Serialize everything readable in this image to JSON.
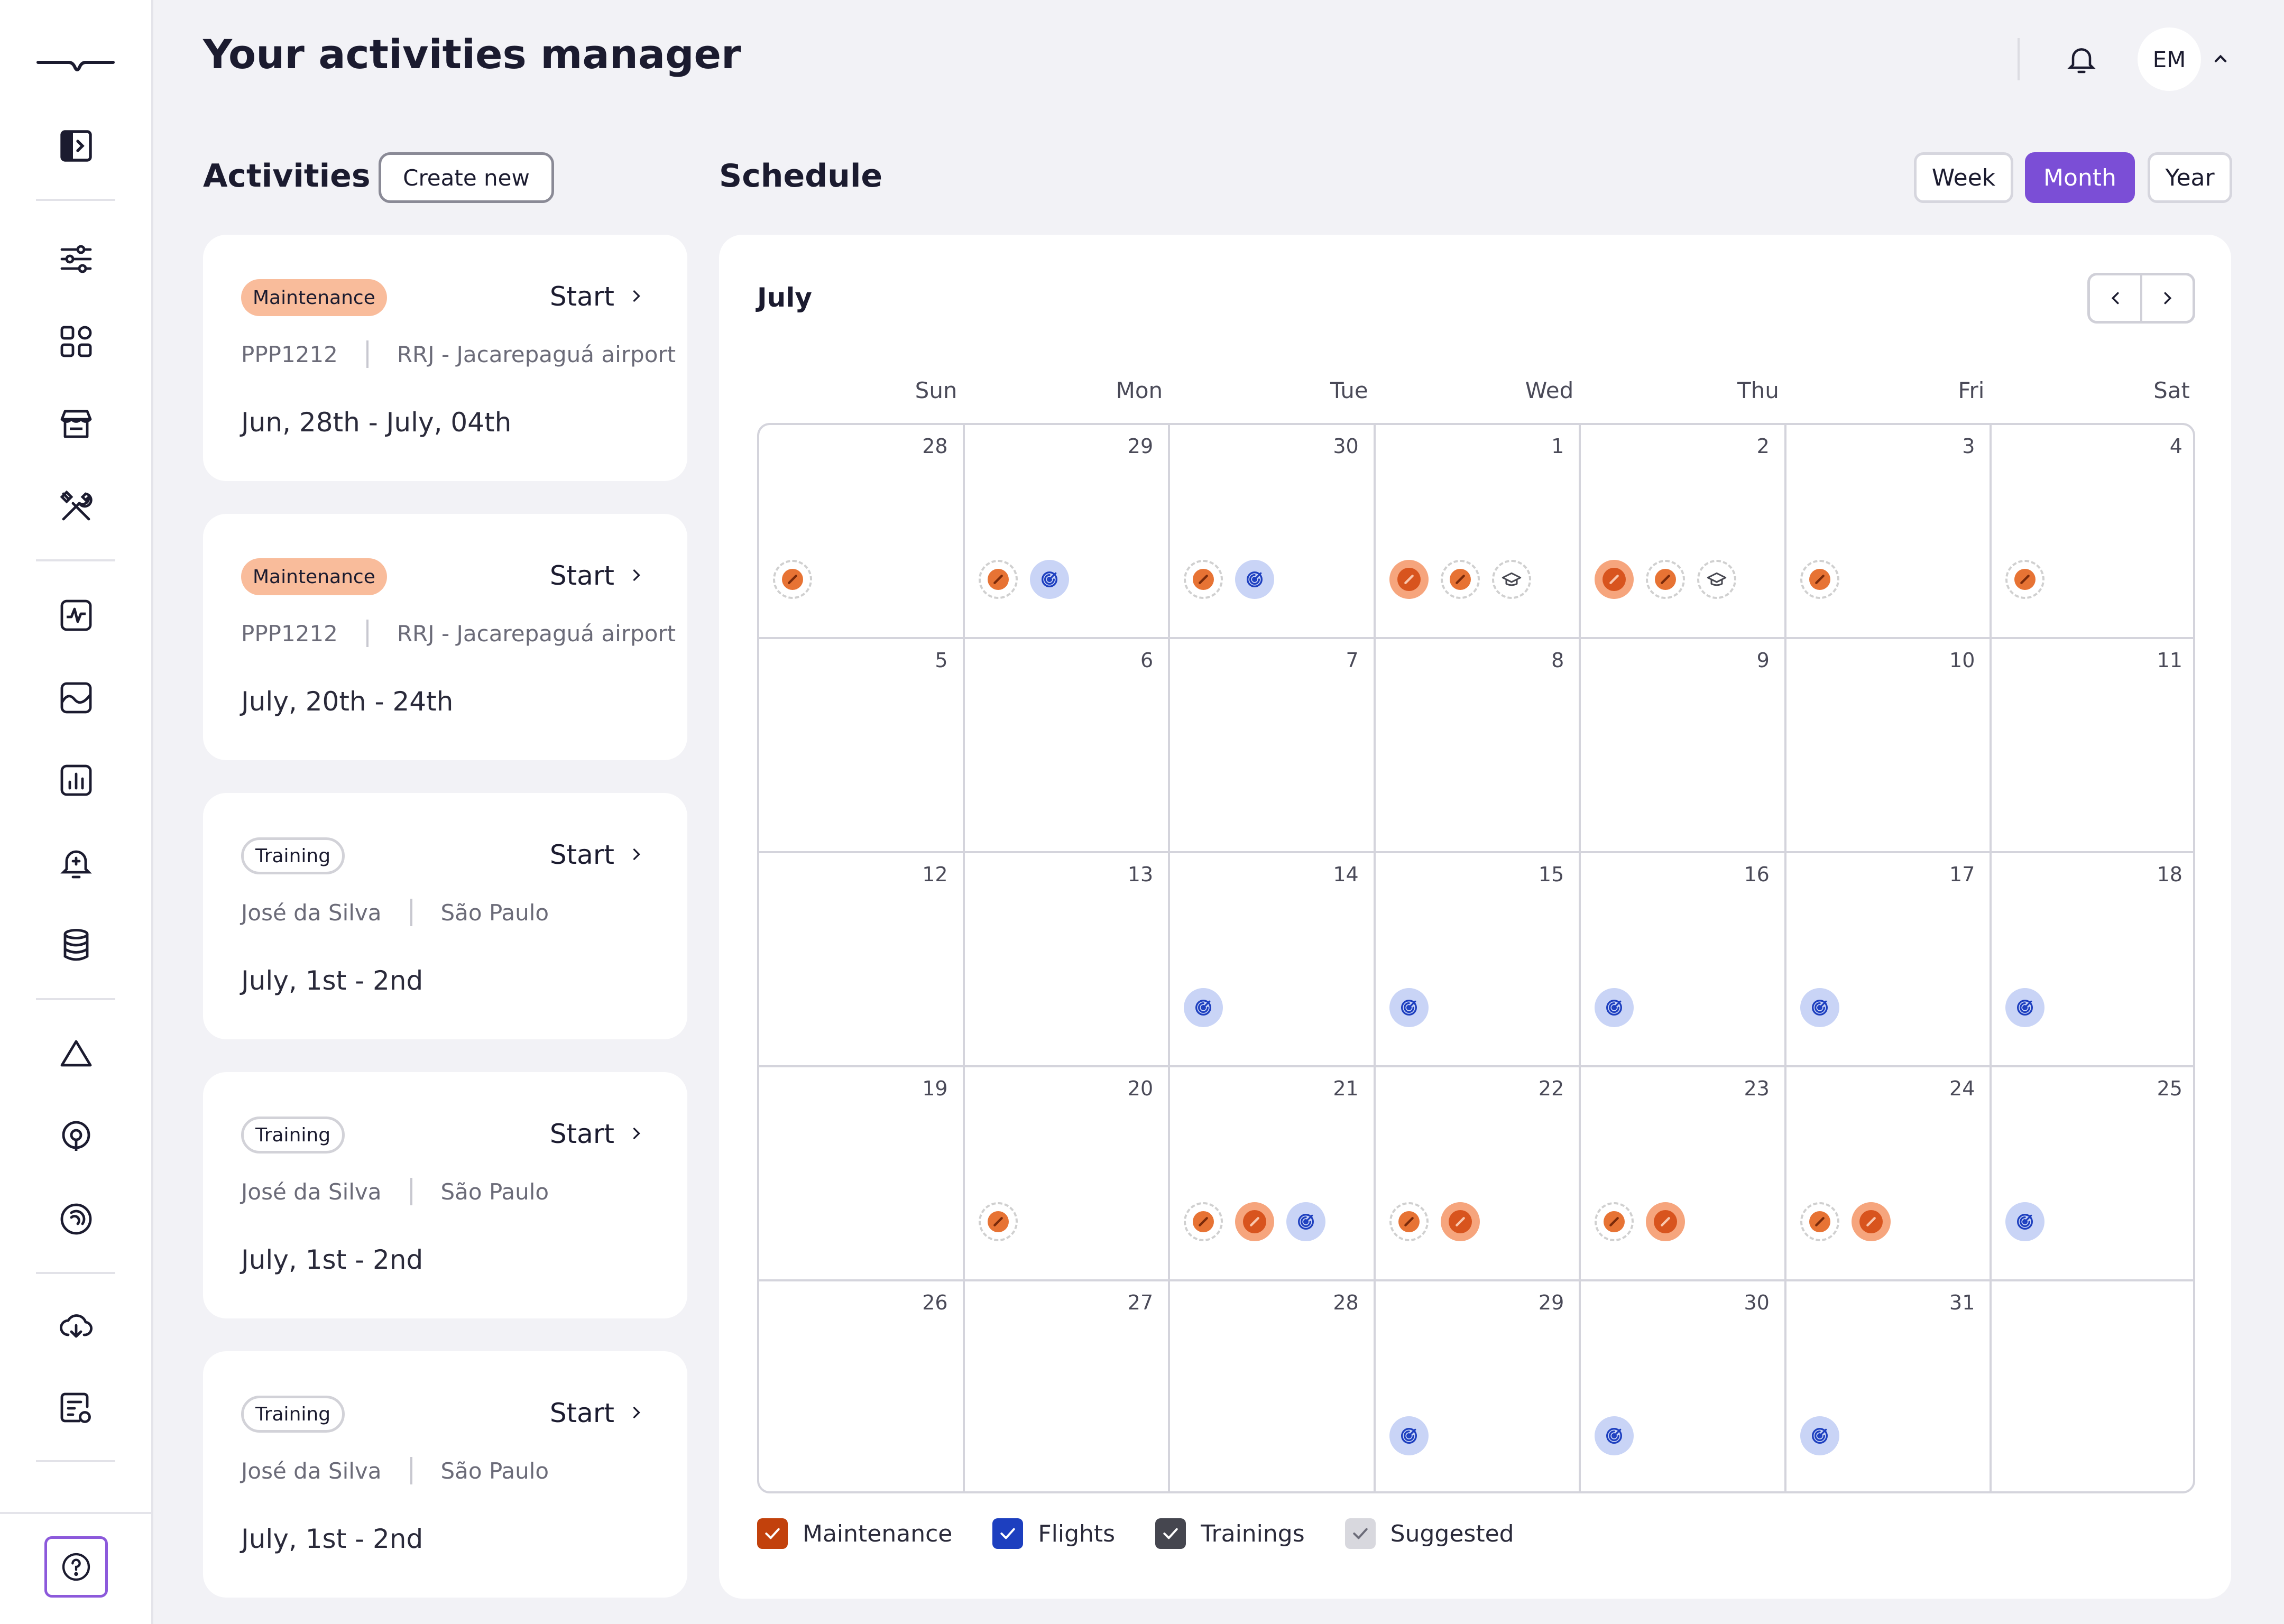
{
  "app": {
    "title": "Your activities manager",
    "user_initials": "EM"
  },
  "sidebar": {
    "icons": [
      "toggle-sidebar-icon",
      "sliders-icon",
      "grid-icon",
      "store-icon",
      "tools-icon",
      "activity-monitor-icon",
      "chart-wave-icon",
      "bar-chart-icon",
      "bell-add-icon",
      "database-icon",
      "triangle-icon",
      "location-pin-icon",
      "radar-icon",
      "cloud-download-icon",
      "report-settings-icon",
      "help-icon"
    ]
  },
  "activities": {
    "title": "Activities",
    "create_label": "Create new",
    "items": [
      {
        "type": "Maintenance",
        "action": "Start",
        "meta_left": "PPP1212",
        "meta_right": "RRJ - Jacarepaguá airport",
        "date": "Jun, 28th - July, 04th"
      },
      {
        "type": "Maintenance",
        "action": "Start",
        "meta_left": "PPP1212",
        "meta_right": "RRJ - Jacarepaguá airport",
        "date": "July, 20th - 24th"
      },
      {
        "type": "Training",
        "action": "Start",
        "meta_left": "José da Silva",
        "meta_right": "São Paulo",
        "date": "July, 1st - 2nd"
      },
      {
        "type": "Training",
        "action": "Start",
        "meta_left": "José da Silva",
        "meta_right": "São Paulo",
        "date": "July, 1st - 2nd"
      },
      {
        "type": "Training",
        "action": "Start",
        "meta_left": "José da Silva",
        "meta_right": "São Paulo",
        "date": "July, 1st - 2nd"
      }
    ]
  },
  "schedule": {
    "title": "Schedule",
    "views": [
      "Week",
      "Month",
      "Year"
    ],
    "active_view": "Month",
    "month": "July",
    "weekdays": [
      "Sun",
      "Mon",
      "Tue",
      "Wed",
      "Thu",
      "Fri",
      "Sat"
    ],
    "weeks": [
      [
        {
          "day": "28",
          "events": [
            "suggested-maintenance"
          ]
        },
        {
          "day": "29",
          "events": [
            "suggested-maintenance",
            "flight"
          ]
        },
        {
          "day": "30",
          "events": [
            "suggested-maintenance",
            "flight"
          ]
        },
        {
          "day": "1",
          "events": [
            "maintenance",
            "suggested-maintenance",
            "training"
          ]
        },
        {
          "day": "2",
          "events": [
            "maintenance",
            "suggested-maintenance",
            "training"
          ]
        },
        {
          "day": "3",
          "events": [
            "suggested-maintenance"
          ]
        },
        {
          "day": "4",
          "events": [
            "suggested-maintenance"
          ]
        }
      ],
      [
        {
          "day": "5",
          "events": []
        },
        {
          "day": "6",
          "events": []
        },
        {
          "day": "7",
          "events": []
        },
        {
          "day": "8",
          "events": []
        },
        {
          "day": "9",
          "events": []
        },
        {
          "day": "10",
          "events": []
        },
        {
          "day": "11",
          "events": []
        }
      ],
      [
        {
          "day": "12",
          "events": []
        },
        {
          "day": "13",
          "events": []
        },
        {
          "day": "14",
          "events": [
            "flight"
          ]
        },
        {
          "day": "15",
          "events": [
            "flight"
          ]
        },
        {
          "day": "16",
          "events": [
            "flight"
          ]
        },
        {
          "day": "17",
          "events": [
            "flight"
          ]
        },
        {
          "day": "18",
          "events": [
            "flight"
          ]
        }
      ],
      [
        {
          "day": "19",
          "events": []
        },
        {
          "day": "20",
          "events": [
            "suggested-maintenance"
          ]
        },
        {
          "day": "21",
          "events": [
            "suggested-maintenance",
            "maintenance",
            "flight"
          ]
        },
        {
          "day": "22",
          "events": [
            "suggested-maintenance",
            "maintenance"
          ]
        },
        {
          "day": "23",
          "events": [
            "suggested-maintenance",
            "maintenance"
          ]
        },
        {
          "day": "24",
          "events": [
            "suggested-maintenance",
            "maintenance"
          ]
        },
        {
          "day": "25",
          "events": [
            "flight"
          ]
        }
      ],
      [
        {
          "day": "26",
          "events": []
        },
        {
          "day": "27",
          "events": []
        },
        {
          "day": "28",
          "events": []
        },
        {
          "day": "29",
          "events": [
            "flight"
          ]
        },
        {
          "day": "30",
          "events": [
            "flight"
          ]
        },
        {
          "day": "31",
          "events": [
            "flight"
          ]
        },
        {
          "day": "",
          "events": []
        }
      ]
    ],
    "legend": [
      {
        "label": "Maintenance",
        "color": "#C2410C",
        "checked": true
      },
      {
        "label": "Flights",
        "color": "#1D3FBF",
        "checked": true
      },
      {
        "label": "Trainings",
        "color": "#45464F",
        "checked": true
      },
      {
        "label": "Suggested",
        "color": "#D8D8DE",
        "checked": true
      }
    ]
  },
  "colors": {
    "accent": "#7B4ED6",
    "maintenance": "#D8541E",
    "maintenance_bg": "#F6A57D",
    "flight": "#1D3FBF",
    "flight_bg": "#C9D4F6",
    "badge_maintenance": "#F9BC9B"
  }
}
